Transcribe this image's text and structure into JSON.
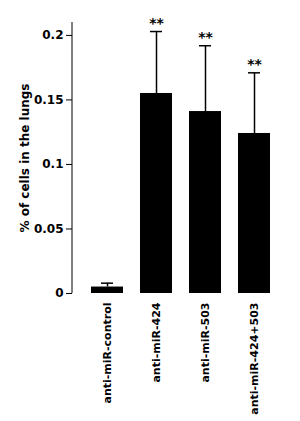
{
  "chart_data": {
    "type": "bar",
    "y_label": "% of cells in the lungs",
    "categories": [
      "anti-miR-control",
      "anti-miR-424",
      "anti-miR-503",
      "anti-miR-424+503"
    ],
    "values": [
      0.005,
      0.155,
      0.141,
      0.124
    ],
    "errors": [
      0.003,
      0.048,
      0.051,
      0.047
    ],
    "annotations": [
      null,
      "**",
      "**",
      "**"
    ],
    "color": "#000000",
    "ylim": [
      0,
      0.21
    ],
    "yticks": [
      0,
      0.05,
      0.1,
      0.15,
      0.2
    ],
    "grid": false
  }
}
